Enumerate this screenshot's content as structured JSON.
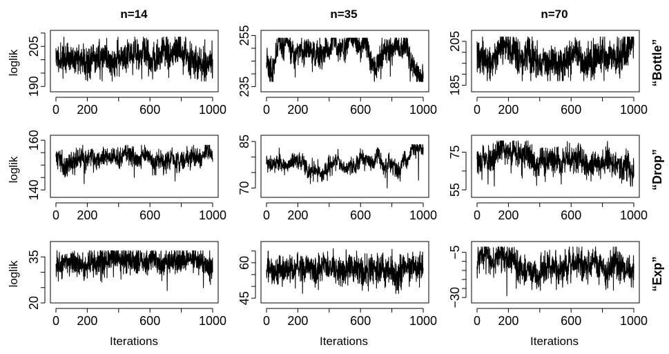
{
  "chart_data": {
    "type": "line",
    "layout": "3x3 grid of trace plots",
    "columns": [
      "n=14",
      "n=35",
      "n=70"
    ],
    "rows": [
      "“Bottle”",
      "“Drop”",
      "“Exp”"
    ],
    "ylabel": "loglik",
    "xlabel": "Iterations",
    "xlim": [
      0,
      1000
    ],
    "xticks": [
      0,
      200,
      600,
      1000
    ],
    "panels": [
      {
        "row": 0,
        "col": 0,
        "ylim": [
          188,
          211
        ],
        "yticks": [
          190,
          205
        ],
        "yminor": [
          195,
          200,
          210
        ],
        "mean": 200.5,
        "noise": 3,
        "wander": 2,
        "low": 192,
        "high": 208.5,
        "dips": [
          [
            45,
            193
          ],
          [
            120,
            195
          ],
          [
            460,
            197
          ]
        ],
        "seed": 11
      },
      {
        "row": 0,
        "col": 1,
        "ylim": [
          233,
          257
        ],
        "yticks": [
          235,
          255
        ],
        "yminor": [
          240,
          245,
          250
        ],
        "mean": 246,
        "noise": 2.5,
        "wander": 3.5,
        "low": 237,
        "high": 254,
        "dips": [
          [
            730,
            238
          ],
          [
            790,
            239
          ],
          [
            50,
            240
          ]
        ],
        "seed": 23
      },
      {
        "row": 0,
        "col": 2,
        "ylim": [
          182,
          210
        ],
        "yticks": [
          185,
          205
        ],
        "yminor": [
          190,
          195,
          200
        ],
        "mean": 198,
        "noise": 4,
        "wander": 3,
        "low": 187,
        "high": 207,
        "dips": [
          [
            80,
            188
          ],
          [
            810,
            187
          ],
          [
            910,
            190
          ]
        ],
        "seed": 37
      },
      {
        "row": 1,
        "col": 0,
        "ylim": [
          137,
          162
        ],
        "yticks": [
          140,
          160
        ],
        "yminor": [
          145,
          150,
          155
        ],
        "mean": 152.5,
        "noise": 2,
        "wander": 1.5,
        "low": 142,
        "high": 158,
        "dips": [
          [
            180,
            142.5
          ],
          [
            760,
            143.5
          ],
          [
            120,
            146
          ],
          [
            500,
            145
          ],
          [
            240,
            147
          ]
        ],
        "seed": 41
      },
      {
        "row": 1,
        "col": 1,
        "ylim": [
          67,
          87
        ],
        "yticks": [
          70,
          85
        ],
        "yminor": [
          75,
          80
        ],
        "mean": 79,
        "noise": 1.3,
        "wander": 2.2,
        "low": 69.5,
        "high": 84,
        "dips": [
          [
            770,
            70
          ],
          [
            970,
            72.5
          ]
        ],
        "seed": 53
      },
      {
        "row": 1,
        "col": 2,
        "ylim": [
          51,
          84
        ],
        "yticks": [
          55,
          75
        ],
        "yminor": [
          65
        ],
        "mean": 70,
        "noise": 3.5,
        "wander": 3,
        "low": 56,
        "high": 81,
        "dips": [
          [
            70,
            58
          ],
          [
            110,
            57
          ],
          [
            1000,
            62
          ]
        ],
        "seed": 67
      },
      {
        "row": 2,
        "col": 0,
        "ylim": [
          20,
          40
        ],
        "yticks": [
          20,
          35
        ],
        "yminor": [
          25,
          30
        ],
        "mean": 33,
        "noise": 2.2,
        "wander": 1.2,
        "low": 24,
        "high": 37,
        "dips": [
          [
            710,
            24
          ],
          [
            40,
            28
          ],
          [
            980,
            27
          ]
        ],
        "seed": 71
      },
      {
        "row": 2,
        "col": 1,
        "ylim": [
          43,
          69
        ],
        "yticks": [
          45,
          60
        ],
        "yminor": [
          50,
          55,
          65
        ],
        "mean": 57,
        "noise": 3,
        "wander": 1.5,
        "low": 47,
        "high": 66,
        "dips": [
          [
            230,
            47
          ],
          [
            650,
            48
          ],
          [
            860,
            48.5
          ]
        ],
        "seed": 83
      },
      {
        "row": 2,
        "col": 2,
        "ylim": [
          -33,
          1
        ],
        "yticks": [
          -30,
          -5
        ],
        "yminor": [
          -25,
          -20,
          -15,
          -10
        ],
        "mean": -13,
        "noise": 4,
        "wander": 3,
        "low": -30,
        "high": -2,
        "dips": [
          [
            190,
            -29
          ],
          [
            870,
            -26
          ],
          [
            250,
            -25
          ]
        ],
        "seed": 97
      }
    ]
  }
}
